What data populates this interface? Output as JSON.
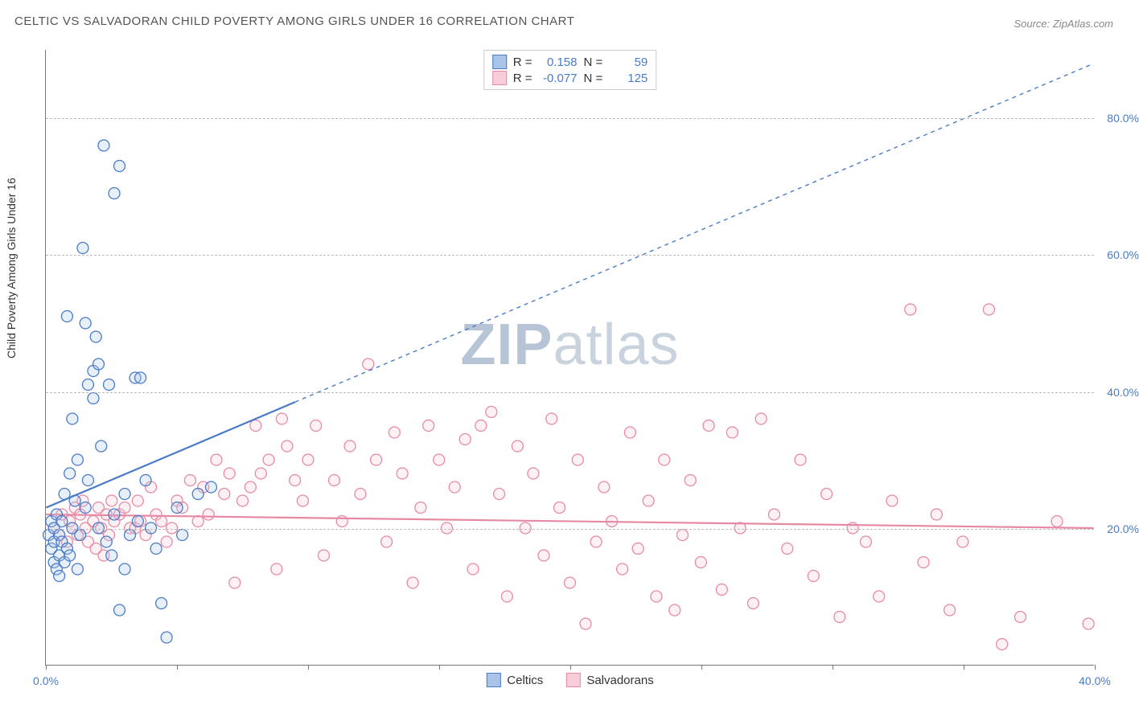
{
  "title": "CELTIC VS SALVADORAN CHILD POVERTY AMONG GIRLS UNDER 16 CORRELATION CHART",
  "source": "Source: ZipAtlas.com",
  "y_axis_label": "Child Poverty Among Girls Under 16",
  "watermark_bold": "ZIP",
  "watermark_rest": "atlas",
  "chart": {
    "type": "scatter",
    "xlim": [
      0,
      40
    ],
    "ylim": [
      0,
      90
    ],
    "x_ticks": [
      0,
      5,
      10,
      15,
      20,
      25,
      30,
      35,
      40
    ],
    "x_tick_labels": {
      "0": "0.0%",
      "40": "40.0%"
    },
    "y_ticks": [
      20,
      40,
      60,
      80
    ],
    "y_tick_labels": {
      "20": "20.0%",
      "40": "40.0%",
      "60": "60.0%",
      "80": "80.0%"
    },
    "grid_color": "#bbbbbb",
    "axis_color": "#777777",
    "background_color": "#ffffff",
    "tick_label_color": "#4a7bc7",
    "tick_label_fontsize": 14,
    "title_fontsize": 15,
    "title_color": "#555555",
    "marker_radius": 7,
    "marker_stroke_width": 1.3,
    "marker_fill_opacity": 0.28,
    "line_width_solid": 2.2,
    "line_width_dashed": 1.4,
    "dash_pattern": "5,5"
  },
  "series": {
    "celtics": {
      "label": "Celtics",
      "stroke": "#4a7bc7",
      "fill": "#a9c4e8",
      "r_value": "0.158",
      "n_value": "59",
      "trend": {
        "x1": 0,
        "y1": 23,
        "x2": 40,
        "y2": 88,
        "solid_until_x": 9.5
      },
      "points": [
        [
          0.1,
          19
        ],
        [
          0.2,
          17
        ],
        [
          0.2,
          21
        ],
        [
          0.3,
          15
        ],
        [
          0.3,
          18
        ],
        [
          0.3,
          20
        ],
        [
          0.4,
          14
        ],
        [
          0.4,
          22
        ],
        [
          0.5,
          13
        ],
        [
          0.5,
          16
        ],
        [
          0.5,
          19
        ],
        [
          0.6,
          18
        ],
        [
          0.6,
          21
        ],
        [
          0.7,
          15
        ],
        [
          0.7,
          25
        ],
        [
          0.8,
          17
        ],
        [
          0.8,
          51
        ],
        [
          0.9,
          16
        ],
        [
          0.9,
          28
        ],
        [
          1.0,
          20
        ],
        [
          1.0,
          36
        ],
        [
          1.1,
          24
        ],
        [
          1.2,
          30
        ],
        [
          1.2,
          14
        ],
        [
          1.3,
          19
        ],
        [
          1.4,
          61
        ],
        [
          1.5,
          23
        ],
        [
          1.5,
          50
        ],
        [
          1.6,
          41
        ],
        [
          1.6,
          27
        ],
        [
          1.8,
          43
        ],
        [
          1.8,
          39
        ],
        [
          1.9,
          48
        ],
        [
          2.0,
          20
        ],
        [
          2.0,
          44
        ],
        [
          2.1,
          32
        ],
        [
          2.2,
          76
        ],
        [
          2.3,
          18
        ],
        [
          2.4,
          41
        ],
        [
          2.5,
          16
        ],
        [
          2.6,
          22
        ],
        [
          2.6,
          69
        ],
        [
          2.8,
          8
        ],
        [
          2.8,
          73
        ],
        [
          3.0,
          25
        ],
        [
          3.0,
          14
        ],
        [
          3.2,
          19
        ],
        [
          3.4,
          42
        ],
        [
          3.5,
          21
        ],
        [
          3.6,
          42
        ],
        [
          3.8,
          27
        ],
        [
          4.0,
          20
        ],
        [
          4.2,
          17
        ],
        [
          4.4,
          9
        ],
        [
          4.6,
          4
        ],
        [
          5.0,
          23
        ],
        [
          5.2,
          19
        ],
        [
          5.8,
          25
        ],
        [
          6.3,
          26
        ]
      ]
    },
    "salvadorans": {
      "label": "Salvadorans",
      "stroke": "#e68aa4",
      "fill": "#f7cdd9",
      "r_value": "-0.077",
      "n_value": "125",
      "trend": {
        "x1": 0,
        "y1": 22,
        "x2": 40,
        "y2": 20,
        "solid_until_x": 40
      },
      "points": [
        [
          0.3,
          20
        ],
        [
          0.5,
          19
        ],
        [
          0.6,
          22
        ],
        [
          0.8,
          18
        ],
        [
          0.9,
          21
        ],
        [
          1.0,
          20
        ],
        [
          1.1,
          23
        ],
        [
          1.2,
          19
        ],
        [
          1.3,
          22
        ],
        [
          1.4,
          24
        ],
        [
          1.5,
          20
        ],
        [
          1.6,
          18
        ],
        [
          1.8,
          21
        ],
        [
          1.9,
          17
        ],
        [
          2.0,
          23
        ],
        [
          2.1,
          20
        ],
        [
          2.2,
          16
        ],
        [
          2.3,
          22
        ],
        [
          2.4,
          19
        ],
        [
          2.5,
          24
        ],
        [
          2.6,
          21
        ],
        [
          2.8,
          22
        ],
        [
          3.0,
          23
        ],
        [
          3.2,
          20
        ],
        [
          3.4,
          20
        ],
        [
          3.5,
          24
        ],
        [
          3.6,
          21
        ],
        [
          3.8,
          19
        ],
        [
          4.0,
          26
        ],
        [
          4.2,
          22
        ],
        [
          4.4,
          21
        ],
        [
          4.6,
          18
        ],
        [
          4.8,
          20
        ],
        [
          5.0,
          24
        ],
        [
          5.2,
          23
        ],
        [
          5.5,
          27
        ],
        [
          5.8,
          21
        ],
        [
          6.0,
          26
        ],
        [
          6.2,
          22
        ],
        [
          6.5,
          30
        ],
        [
          6.8,
          25
        ],
        [
          7.0,
          28
        ],
        [
          7.2,
          12
        ],
        [
          7.5,
          24
        ],
        [
          7.8,
          26
        ],
        [
          8.0,
          35
        ],
        [
          8.2,
          28
        ],
        [
          8.5,
          30
        ],
        [
          8.8,
          14
        ],
        [
          9.0,
          36
        ],
        [
          9.2,
          32
        ],
        [
          9.5,
          27
        ],
        [
          9.8,
          24
        ],
        [
          10.0,
          30
        ],
        [
          10.3,
          35
        ],
        [
          10.6,
          16
        ],
        [
          11.0,
          27
        ],
        [
          11.3,
          21
        ],
        [
          11.6,
          32
        ],
        [
          12.0,
          25
        ],
        [
          12.3,
          44
        ],
        [
          12.6,
          30
        ],
        [
          13.0,
          18
        ],
        [
          13.3,
          34
        ],
        [
          13.6,
          28
        ],
        [
          14.0,
          12
        ],
        [
          14.3,
          23
        ],
        [
          14.6,
          35
        ],
        [
          15.0,
          30
        ],
        [
          15.3,
          20
        ],
        [
          15.6,
          26
        ],
        [
          16.0,
          33
        ],
        [
          16.3,
          14
        ],
        [
          16.6,
          35
        ],
        [
          17.0,
          37
        ],
        [
          17.3,
          25
        ],
        [
          17.6,
          10
        ],
        [
          18.0,
          32
        ],
        [
          18.3,
          20
        ],
        [
          18.6,
          28
        ],
        [
          19.0,
          16
        ],
        [
          19.3,
          36
        ],
        [
          19.6,
          23
        ],
        [
          20.0,
          12
        ],
        [
          20.3,
          30
        ],
        [
          20.6,
          6
        ],
        [
          21.0,
          18
        ],
        [
          21.3,
          26
        ],
        [
          21.6,
          21
        ],
        [
          22.0,
          14
        ],
        [
          22.3,
          34
        ],
        [
          22.6,
          17
        ],
        [
          23.0,
          24
        ],
        [
          23.3,
          10
        ],
        [
          23.6,
          30
        ],
        [
          24.0,
          8
        ],
        [
          24.3,
          19
        ],
        [
          24.6,
          27
        ],
        [
          25.0,
          15
        ],
        [
          25.3,
          35
        ],
        [
          25.8,
          11
        ],
        [
          26.2,
          34
        ],
        [
          26.5,
          20
        ],
        [
          27.0,
          9
        ],
        [
          27.3,
          36
        ],
        [
          27.8,
          22
        ],
        [
          28.3,
          17
        ],
        [
          28.8,
          30
        ],
        [
          29.3,
          13
        ],
        [
          29.8,
          25
        ],
        [
          30.3,
          7
        ],
        [
          30.8,
          20
        ],
        [
          31.3,
          18
        ],
        [
          31.8,
          10
        ],
        [
          32.3,
          24
        ],
        [
          33.0,
          52
        ],
        [
          33.5,
          15
        ],
        [
          34.0,
          22
        ],
        [
          34.5,
          8
        ],
        [
          35.0,
          18
        ],
        [
          36.0,
          52
        ],
        [
          36.5,
          3
        ],
        [
          37.2,
          7
        ],
        [
          38.6,
          21
        ],
        [
          39.8,
          6
        ]
      ]
    }
  },
  "stats_legend_labels": {
    "r": "R =",
    "n": "N ="
  },
  "bottom_legend": [
    "celtics",
    "salvadorans"
  ]
}
